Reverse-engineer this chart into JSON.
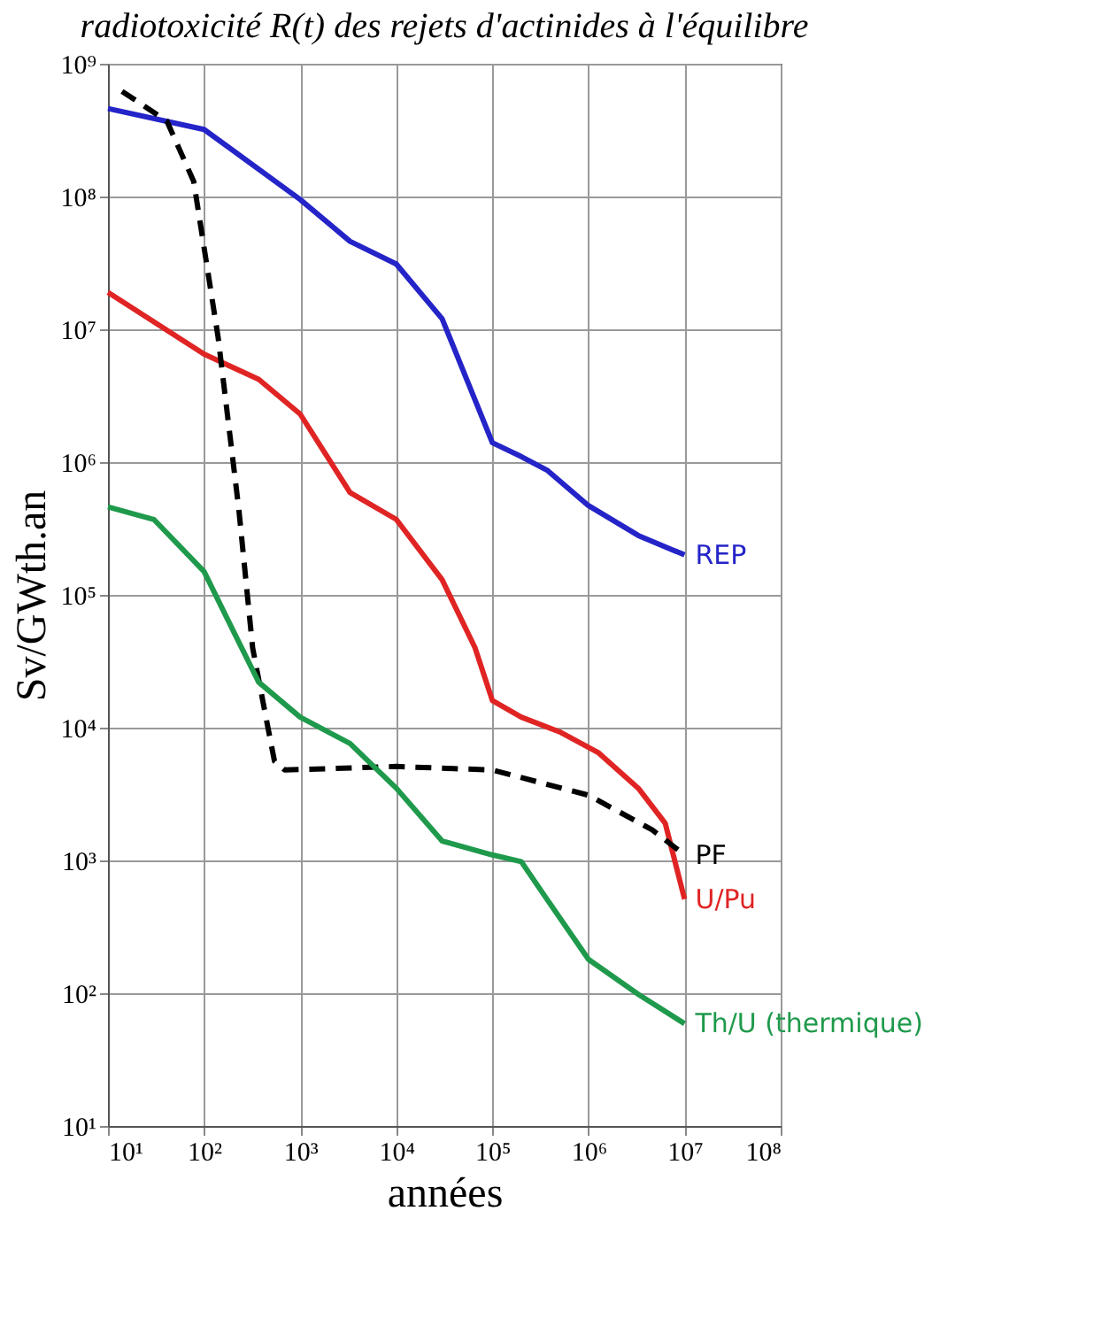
{
  "chart_data": {
    "type": "line",
    "title": "radiotoxicité R(t) des rejets d'actinides à l'équilibre",
    "xlabel": "années",
    "ylabel": "Sv/GWth.an",
    "log": "xy",
    "grid": true,
    "legend": false,
    "marker": "none",
    "xlim": [
      10,
      100000000
    ],
    "ylim": [
      10,
      1000000000
    ],
    "xticks": [
      {
        "value": 10,
        "label": "10¹"
      },
      {
        "value": 100,
        "label": "10²"
      },
      {
        "value": 1000,
        "label": "10³"
      },
      {
        "value": 10000,
        "label": "10⁴"
      },
      {
        "value": 100000,
        "label": "10⁵"
      },
      {
        "value": 1000000,
        "label": "10⁶"
      },
      {
        "value": 10000000,
        "label": "10⁷"
      },
      {
        "value": 100000000,
        "label": "10⁸"
      }
    ],
    "yticks": [
      {
        "value": 10,
        "label": "10¹"
      },
      {
        "value": 100,
        "label": "10²"
      },
      {
        "value": 1000,
        "label": "10³"
      },
      {
        "value": 10000,
        "label": "10⁴"
      },
      {
        "value": 100000,
        "label": "10⁵"
      },
      {
        "value": 1000000,
        "label": "10⁶"
      },
      {
        "value": 10000000,
        "label": "10⁷"
      },
      {
        "value": 100000000,
        "label": "10⁸"
      },
      {
        "value": 1000000000,
        "label": "10⁹"
      }
    ],
    "series": [
      {
        "name": "REP",
        "color": "#2424c8",
        "line_style": "solid",
        "x": [
          10,
          100,
          1000,
          3300,
          10000,
          30000,
          100000,
          200000,
          370000,
          1000000,
          3300000,
          10000000
        ],
        "values": [
          460000000,
          320000000,
          95000000,
          46000000,
          31000000,
          12000000,
          1400000,
          1100000,
          870000,
          470000,
          280000,
          200000
        ]
      },
      {
        "name": "U/Pu",
        "color": "#e02424",
        "line_style": "solid",
        "x": [
          10,
          100,
          370,
          1000,
          3300,
          10000,
          30000,
          66000,
          100000,
          200000,
          500000,
          1260000,
          3300000,
          6300000,
          10000000
        ],
        "values": [
          19000000,
          6500000,
          4200000,
          2300000,
          590000,
          370000,
          130000,
          40000,
          16000,
          12000,
          9300,
          6500,
          3500,
          1900,
          510
        ]
      },
      {
        "name": "PF",
        "color": "#000000",
        "line_style": "dashed",
        "x": [
          14,
          41,
          78,
          140,
          230,
          320,
          440,
          540,
          690,
          10000,
          100000,
          1000000,
          4600000,
          10000000
        ],
        "values": [
          620000000,
          370000000,
          130000000,
          8700000,
          440000,
          40000,
          12000,
          5600,
          4800,
          5100,
          4800,
          3100,
          1700,
          1100
        ]
      },
      {
        "name": "Th/U (thermique)",
        "color": "#1f9a4c",
        "line_style": "solid",
        "x": [
          10,
          30,
          100,
          200,
          370,
          1000,
          3300,
          10000,
          30000,
          100000,
          200000,
          370000,
          1000000,
          3300000,
          10000000
        ],
        "values": [
          460000,
          370000,
          150000,
          54000,
          22000,
          12000,
          7600,
          3500,
          1400,
          1100,
          980,
          510,
          180,
          98,
          59
        ]
      }
    ]
  }
}
